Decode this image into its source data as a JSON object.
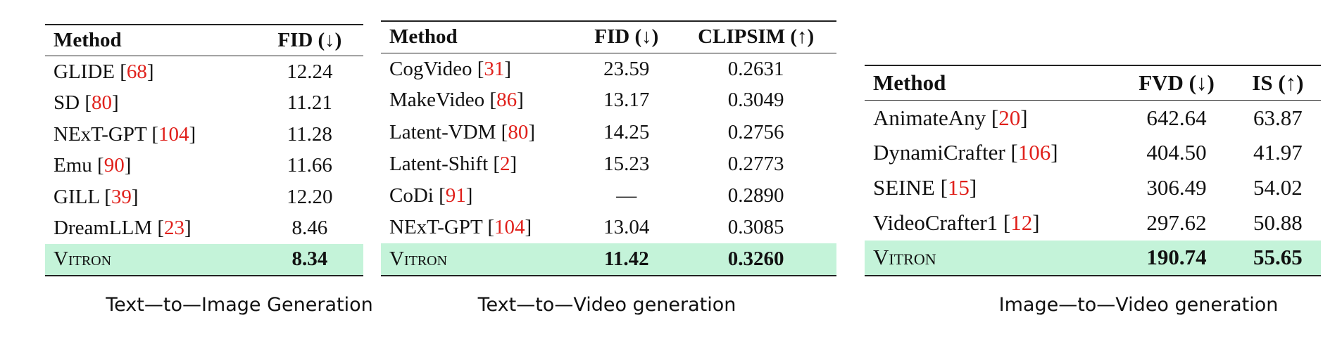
{
  "tables": [
    {
      "header": [
        "Method",
        "FID (↓)"
      ],
      "rows": [
        {
          "method": [
            "GLIDE [",
            "68",
            "]"
          ],
          "values": [
            "12.24"
          ]
        },
        {
          "method": [
            "SD [",
            "80",
            "]"
          ],
          "values": [
            "11.21"
          ]
        },
        {
          "method": [
            "NExT-GPT [",
            "104",
            "]"
          ],
          "values": [
            "11.28"
          ]
        },
        {
          "method": [
            "Emu [",
            "90",
            "]"
          ],
          "values": [
            "11.66"
          ]
        },
        {
          "method": [
            "GILL [",
            "39",
            "]"
          ],
          "values": [
            "12.20"
          ]
        },
        {
          "method": [
            "DreamLLM [",
            "23",
            "]"
          ],
          "values": [
            "8.46"
          ]
        },
        {
          "method": [
            "Vitron"
          ],
          "values": [
            "8.34"
          ]
        }
      ],
      "caption": "Text—to—Image Generation"
    },
    {
      "header": [
        "Method",
        "FID (↓)",
        "CLIPSIM (↑)"
      ],
      "rows": [
        {
          "method": [
            "CogVideo [",
            "31",
            "]"
          ],
          "values": [
            "23.59",
            "0.2631"
          ]
        },
        {
          "method": [
            "MakeVideo [",
            "86",
            "]"
          ],
          "values": [
            "13.17",
            "0.3049"
          ]
        },
        {
          "method": [
            "Latent-VDM [",
            "80",
            "]"
          ],
          "values": [
            "14.25",
            "0.2756"
          ]
        },
        {
          "method": [
            "Latent-Shift [",
            "2",
            "]"
          ],
          "values": [
            "15.23",
            "0.2773"
          ]
        },
        {
          "method": [
            "CoDi [",
            "91",
            "]"
          ],
          "values": [
            "—",
            "0.2890"
          ]
        },
        {
          "method": [
            "NExT-GPT [",
            "104",
            "]"
          ],
          "values": [
            "13.04",
            "0.3085"
          ]
        },
        {
          "method": [
            "Vitron"
          ],
          "values": [
            "11.42",
            "0.3260"
          ]
        }
      ],
      "caption": "Text—to—Video generation"
    },
    {
      "header": [
        "Method",
        "FVD (↓)",
        "IS (↑)"
      ],
      "rows": [
        {
          "method": [
            "AnimateAny [",
            "20",
            "]"
          ],
          "values": [
            "642.64",
            "63.87"
          ]
        },
        {
          "method": [
            "DynamiCrafter [",
            "106",
            "]"
          ],
          "values": [
            "404.50",
            "41.97"
          ]
        },
        {
          "method": [
            "SEINE [",
            "15",
            "]"
          ],
          "values": [
            "306.49",
            "54.02"
          ]
        },
        {
          "method": [
            "VideoCrafter1 [",
            "12",
            "]"
          ],
          "values": [
            "297.62",
            "50.88"
          ]
        },
        {
          "method": [
            "Vitron"
          ],
          "values": [
            "190.74",
            "55.65"
          ]
        }
      ],
      "caption": "Image—to—Video generation"
    }
  ]
}
